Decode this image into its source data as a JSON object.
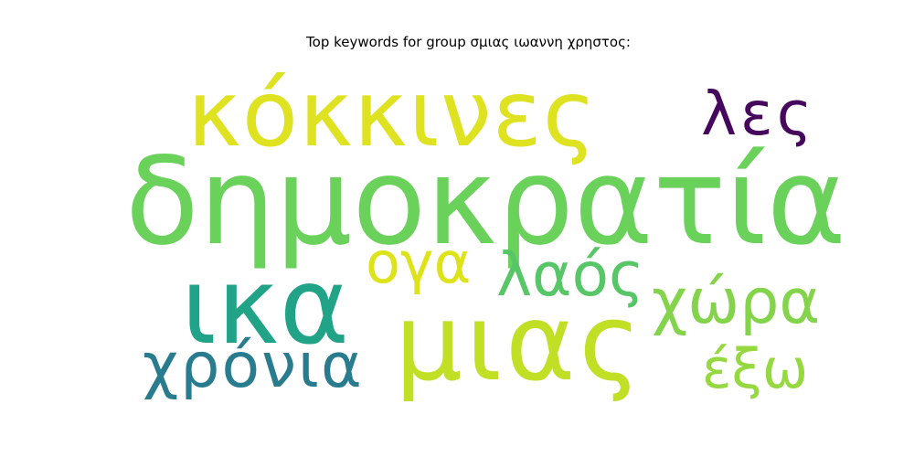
{
  "chart_data": {
    "type": "wordcloud",
    "title": "Top keywords for group σμιας ιωαννη χρηστος:",
    "words": [
      {
        "text": "δημοκρατία",
        "weight": 1.0,
        "color": "#6ad15b"
      },
      {
        "text": "κόκκινες",
        "weight": 0.76,
        "color": "#dfe220"
      },
      {
        "text": "ικα",
        "weight": 0.88,
        "color": "#20a386"
      },
      {
        "text": "μιας",
        "weight": 0.88,
        "color": "#c0df25"
      },
      {
        "text": "λες",
        "weight": 0.5,
        "color": "#46085c"
      },
      {
        "text": "ογα",
        "weight": 0.47,
        "color": "#dde318"
      },
      {
        "text": "λαός",
        "weight": 0.5,
        "color": "#56c667"
      },
      {
        "text": "χώρα",
        "weight": 0.52,
        "color": "#84d44b"
      },
      {
        "text": "χρόνια",
        "weight": 0.52,
        "color": "#287c8e"
      },
      {
        "text": "έξω",
        "weight": 0.45,
        "color": "#95d840"
      }
    ]
  }
}
